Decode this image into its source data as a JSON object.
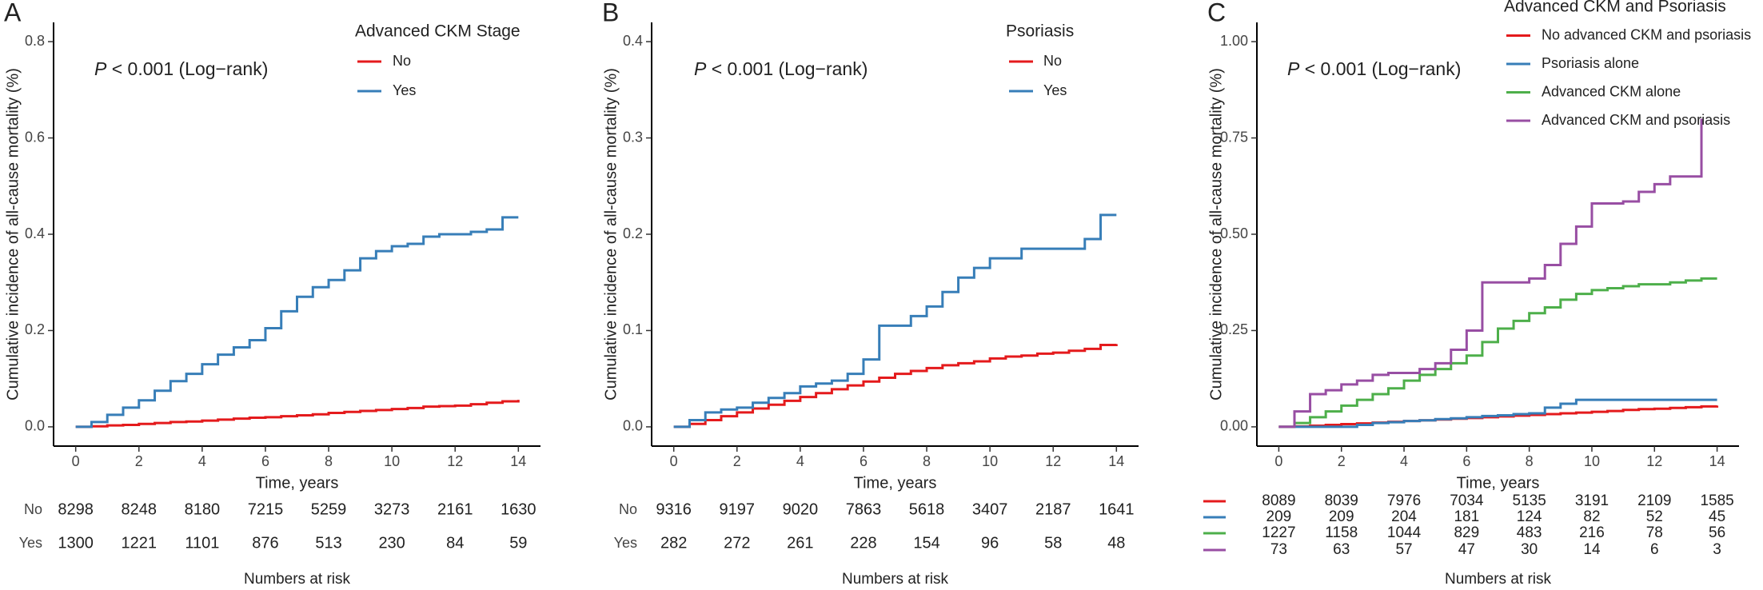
{
  "chart_data": [
    {
      "type": "line",
      "panel_label": "A",
      "annotation": {
        "italic": "P",
        "text": " < 0.001 (Log−rank)"
      },
      "y_label": "Cumulative incidence of all-cause mortality (%)",
      "x_label": "Time, years",
      "legend_title": "Advanced CKM Stage",
      "x": [
        0,
        0.5,
        1,
        1.5,
        2,
        2.5,
        3,
        3.5,
        4,
        4.5,
        5,
        5.5,
        6,
        6.5,
        7,
        7.5,
        8,
        8.5,
        9,
        9.5,
        10,
        10.5,
        11,
        11.5,
        12,
        12.5,
        13,
        13.5,
        14
      ],
      "series": [
        {
          "name": "No",
          "color": "#e41a1c",
          "values": [
            0,
            0.001,
            0.003,
            0.004,
            0.006,
            0.008,
            0.01,
            0.011,
            0.013,
            0.015,
            0.017,
            0.019,
            0.02,
            0.022,
            0.024,
            0.026,
            0.029,
            0.031,
            0.033,
            0.035,
            0.037,
            0.039,
            0.042,
            0.043,
            0.044,
            0.047,
            0.05,
            0.053,
            0.056
          ]
        },
        {
          "name": "Yes",
          "color": "#377eb8",
          "values": [
            0,
            0.01,
            0.025,
            0.04,
            0.055,
            0.075,
            0.095,
            0.11,
            0.13,
            0.15,
            0.165,
            0.18,
            0.205,
            0.24,
            0.27,
            0.29,
            0.305,
            0.325,
            0.35,
            0.365,
            0.375,
            0.38,
            0.395,
            0.4,
            0.4,
            0.405,
            0.41,
            0.435,
            0.435
          ]
        }
      ],
      "xlim": [
        -0.7,
        14.7
      ],
      "xticks": [
        0,
        2,
        4,
        6,
        8,
        10,
        12,
        14
      ],
      "ylim": [
        -0.04,
        0.84
      ],
      "yticks": [
        {
          "value": 0,
          "label": "0.0"
        },
        {
          "value": 0.2,
          "label": "0.2"
        },
        {
          "value": 0.4,
          "label": "0.4"
        },
        {
          "value": 0.6,
          "label": "0.6"
        },
        {
          "value": 0.8,
          "label": "0.8"
        }
      ],
      "risk_table": {
        "title": "Numbers at risk",
        "rows": [
          {
            "label": "No",
            "values": [
              8298,
              8248,
              8180,
              7215,
              5259,
              3273,
              2161,
              1630
            ]
          },
          {
            "label": "Yes",
            "values": [
              1300,
              1221,
              1101,
              876,
              513,
              230,
              84,
              59
            ]
          }
        ]
      }
    },
    {
      "type": "line",
      "panel_label": "B",
      "annotation": {
        "italic": "P",
        "text": " < 0.001 (Log−rank)"
      },
      "y_label": "Cumulative incidence of all-cause mortality (%)",
      "x_label": "Time, years",
      "legend_title": "Psoriasis",
      "x": [
        0,
        0.5,
        1,
        1.5,
        2,
        2.5,
        3,
        3.5,
        4,
        4.5,
        5,
        5.5,
        6,
        6.5,
        7,
        7.5,
        8,
        8.5,
        9,
        9.5,
        10,
        10.5,
        11,
        11.5,
        12,
        12.5,
        13,
        13.5,
        14
      ],
      "series": [
        {
          "name": "No",
          "color": "#e41a1c",
          "values": [
            0,
            0.003,
            0.007,
            0.011,
            0.015,
            0.019,
            0.023,
            0.027,
            0.031,
            0.035,
            0.039,
            0.043,
            0.047,
            0.051,
            0.055,
            0.058,
            0.061,
            0.064,
            0.066,
            0.068,
            0.071,
            0.073,
            0.074,
            0.076,
            0.077,
            0.079,
            0.081,
            0.085,
            0.086
          ]
        },
        {
          "name": "Yes",
          "color": "#377eb8",
          "values": [
            0,
            0.007,
            0.015,
            0.018,
            0.02,
            0.025,
            0.03,
            0.035,
            0.042,
            0.045,
            0.048,
            0.055,
            0.07,
            0.105,
            0.105,
            0.115,
            0.125,
            0.14,
            0.155,
            0.165,
            0.175,
            0.175,
            0.185,
            0.185,
            0.185,
            0.185,
            0.195,
            0.22,
            0.22
          ]
        }
      ],
      "xlim": [
        -0.7,
        14.7
      ],
      "xticks": [
        0,
        2,
        4,
        6,
        8,
        10,
        12,
        14
      ],
      "ylim": [
        -0.02,
        0.42
      ],
      "yticks": [
        {
          "value": 0,
          "label": "0.0"
        },
        {
          "value": 0.1,
          "label": "0.1"
        },
        {
          "value": 0.2,
          "label": "0.2"
        },
        {
          "value": 0.3,
          "label": "0.3"
        },
        {
          "value": 0.4,
          "label": "0.4"
        }
      ],
      "risk_table": {
        "title": "Numbers at risk",
        "rows": [
          {
            "label": "No",
            "values": [
              9316,
              9197,
              9020,
              7863,
              5618,
              3407,
              2187,
              1641
            ]
          },
          {
            "label": "Yes",
            "values": [
              282,
              272,
              261,
              228,
              154,
              96,
              58,
              48
            ]
          }
        ]
      }
    },
    {
      "type": "line",
      "panel_label": "C",
      "annotation": {
        "italic": "P",
        "text": " < 0.001 (Log−rank)"
      },
      "y_label": "Cumulative incidence of all-cause mortality (%)",
      "x_label": "Time, years",
      "legend_title": "Advanced CKM and Psoriasis",
      "x": [
        0,
        0.5,
        1,
        1.5,
        2,
        2.5,
        3,
        3.5,
        4,
        4.5,
        5,
        5.5,
        6,
        6.5,
        7,
        7.5,
        8,
        8.5,
        9,
        9.5,
        10,
        10.5,
        11,
        11.5,
        12,
        12.5,
        13,
        13.5,
        14
      ],
      "series": [
        {
          "name": "No advanced CKM and psoriasis",
          "color": "#e41a1c",
          "values": [
            0,
            0.001,
            0.003,
            0.005,
            0.007,
            0.009,
            0.011,
            0.013,
            0.015,
            0.017,
            0.019,
            0.021,
            0.023,
            0.025,
            0.027,
            0.029,
            0.031,
            0.033,
            0.035,
            0.037,
            0.039,
            0.041,
            0.044,
            0.046,
            0.047,
            0.049,
            0.051,
            0.053,
            0.055
          ]
        },
        {
          "name": "Psoriasis alone",
          "color": "#377eb8",
          "values": [
            0,
            0,
            0,
            0,
            0,
            0.005,
            0.01,
            0.012,
            0.015,
            0.017,
            0.02,
            0.022,
            0.025,
            0.028,
            0.03,
            0.033,
            0.035,
            0.05,
            0.06,
            0.07,
            0.07,
            0.07,
            0.07,
            0.07,
            0.07,
            0.07,
            0.07,
            0.07,
            0.07
          ]
        },
        {
          "name": "Advanced CKM alone",
          "color": "#4daf4a",
          "values": [
            0,
            0.01,
            0.025,
            0.04,
            0.055,
            0.07,
            0.085,
            0.1,
            0.12,
            0.135,
            0.15,
            0.165,
            0.185,
            0.22,
            0.255,
            0.275,
            0.295,
            0.31,
            0.33,
            0.345,
            0.355,
            0.36,
            0.365,
            0.37,
            0.37,
            0.375,
            0.38,
            0.385,
            0.385
          ]
        },
        {
          "name": "Advanced CKM and psoriasis",
          "color": "#984ea3",
          "values": [
            0,
            0.04,
            0.085,
            0.095,
            0.11,
            0.12,
            0.135,
            0.14,
            0.14,
            0.15,
            0.165,
            0.2,
            0.25,
            0.375,
            0.375,
            0.375,
            0.385,
            0.42,
            0.475,
            0.52,
            0.58,
            0.58,
            0.585,
            0.61,
            0.63,
            0.65,
            0.65,
            0.8,
            null
          ]
        }
      ],
      "xlim": [
        -0.7,
        14.7
      ],
      "xticks": [
        0,
        2,
        4,
        6,
        8,
        10,
        12,
        14
      ],
      "ylim": [
        -0.05,
        1.05
      ],
      "yticks": [
        {
          "value": 0,
          "label": "0.00"
        },
        {
          "value": 0.25,
          "label": "0.25"
        },
        {
          "value": 0.5,
          "label": "0.50"
        },
        {
          "value": 0.75,
          "label": "0.75"
        },
        {
          "value": 1,
          "label": "1.00"
        }
      ],
      "risk_table": {
        "title": "Numbers at risk",
        "rows": [
          {
            "values": [
              8089,
              8039,
              7976,
              7034,
              5135,
              3191,
              2109,
              1585
            ]
          },
          {
            "values": [
              209,
              209,
              204,
              181,
              124,
              82,
              52,
              45
            ]
          },
          {
            "values": [
              1227,
              1158,
              1044,
              829,
              483,
              216,
              78,
              56
            ]
          },
          {
            "values": [
              73,
              63,
              57,
              47,
              30,
              14,
              6,
              3
            ]
          }
        ]
      }
    }
  ]
}
